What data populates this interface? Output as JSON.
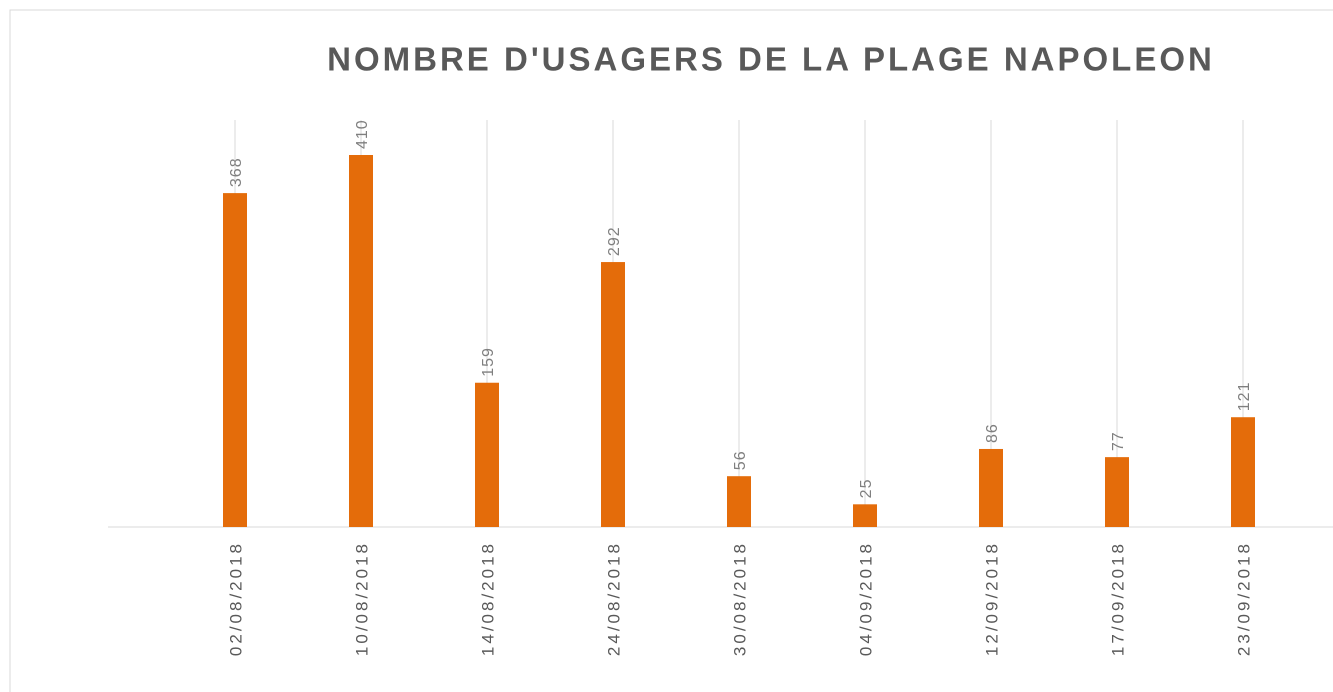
{
  "chart_data": {
    "type": "bar",
    "title": "NOMBRE D'USAGERS DE LA PLAGE NAPOLEON",
    "categories": [
      "02/08/2018",
      "10/08/2018",
      "14/08/2018",
      "24/08/2018",
      "30/08/2018",
      "04/09/2018",
      "12/09/2018",
      "17/09/2018",
      "23/09/2018"
    ],
    "values": [
      368,
      410,
      159,
      292,
      56,
      25,
      86,
      77,
      121
    ],
    "color": "#e46c0a",
    "grid": true
  }
}
